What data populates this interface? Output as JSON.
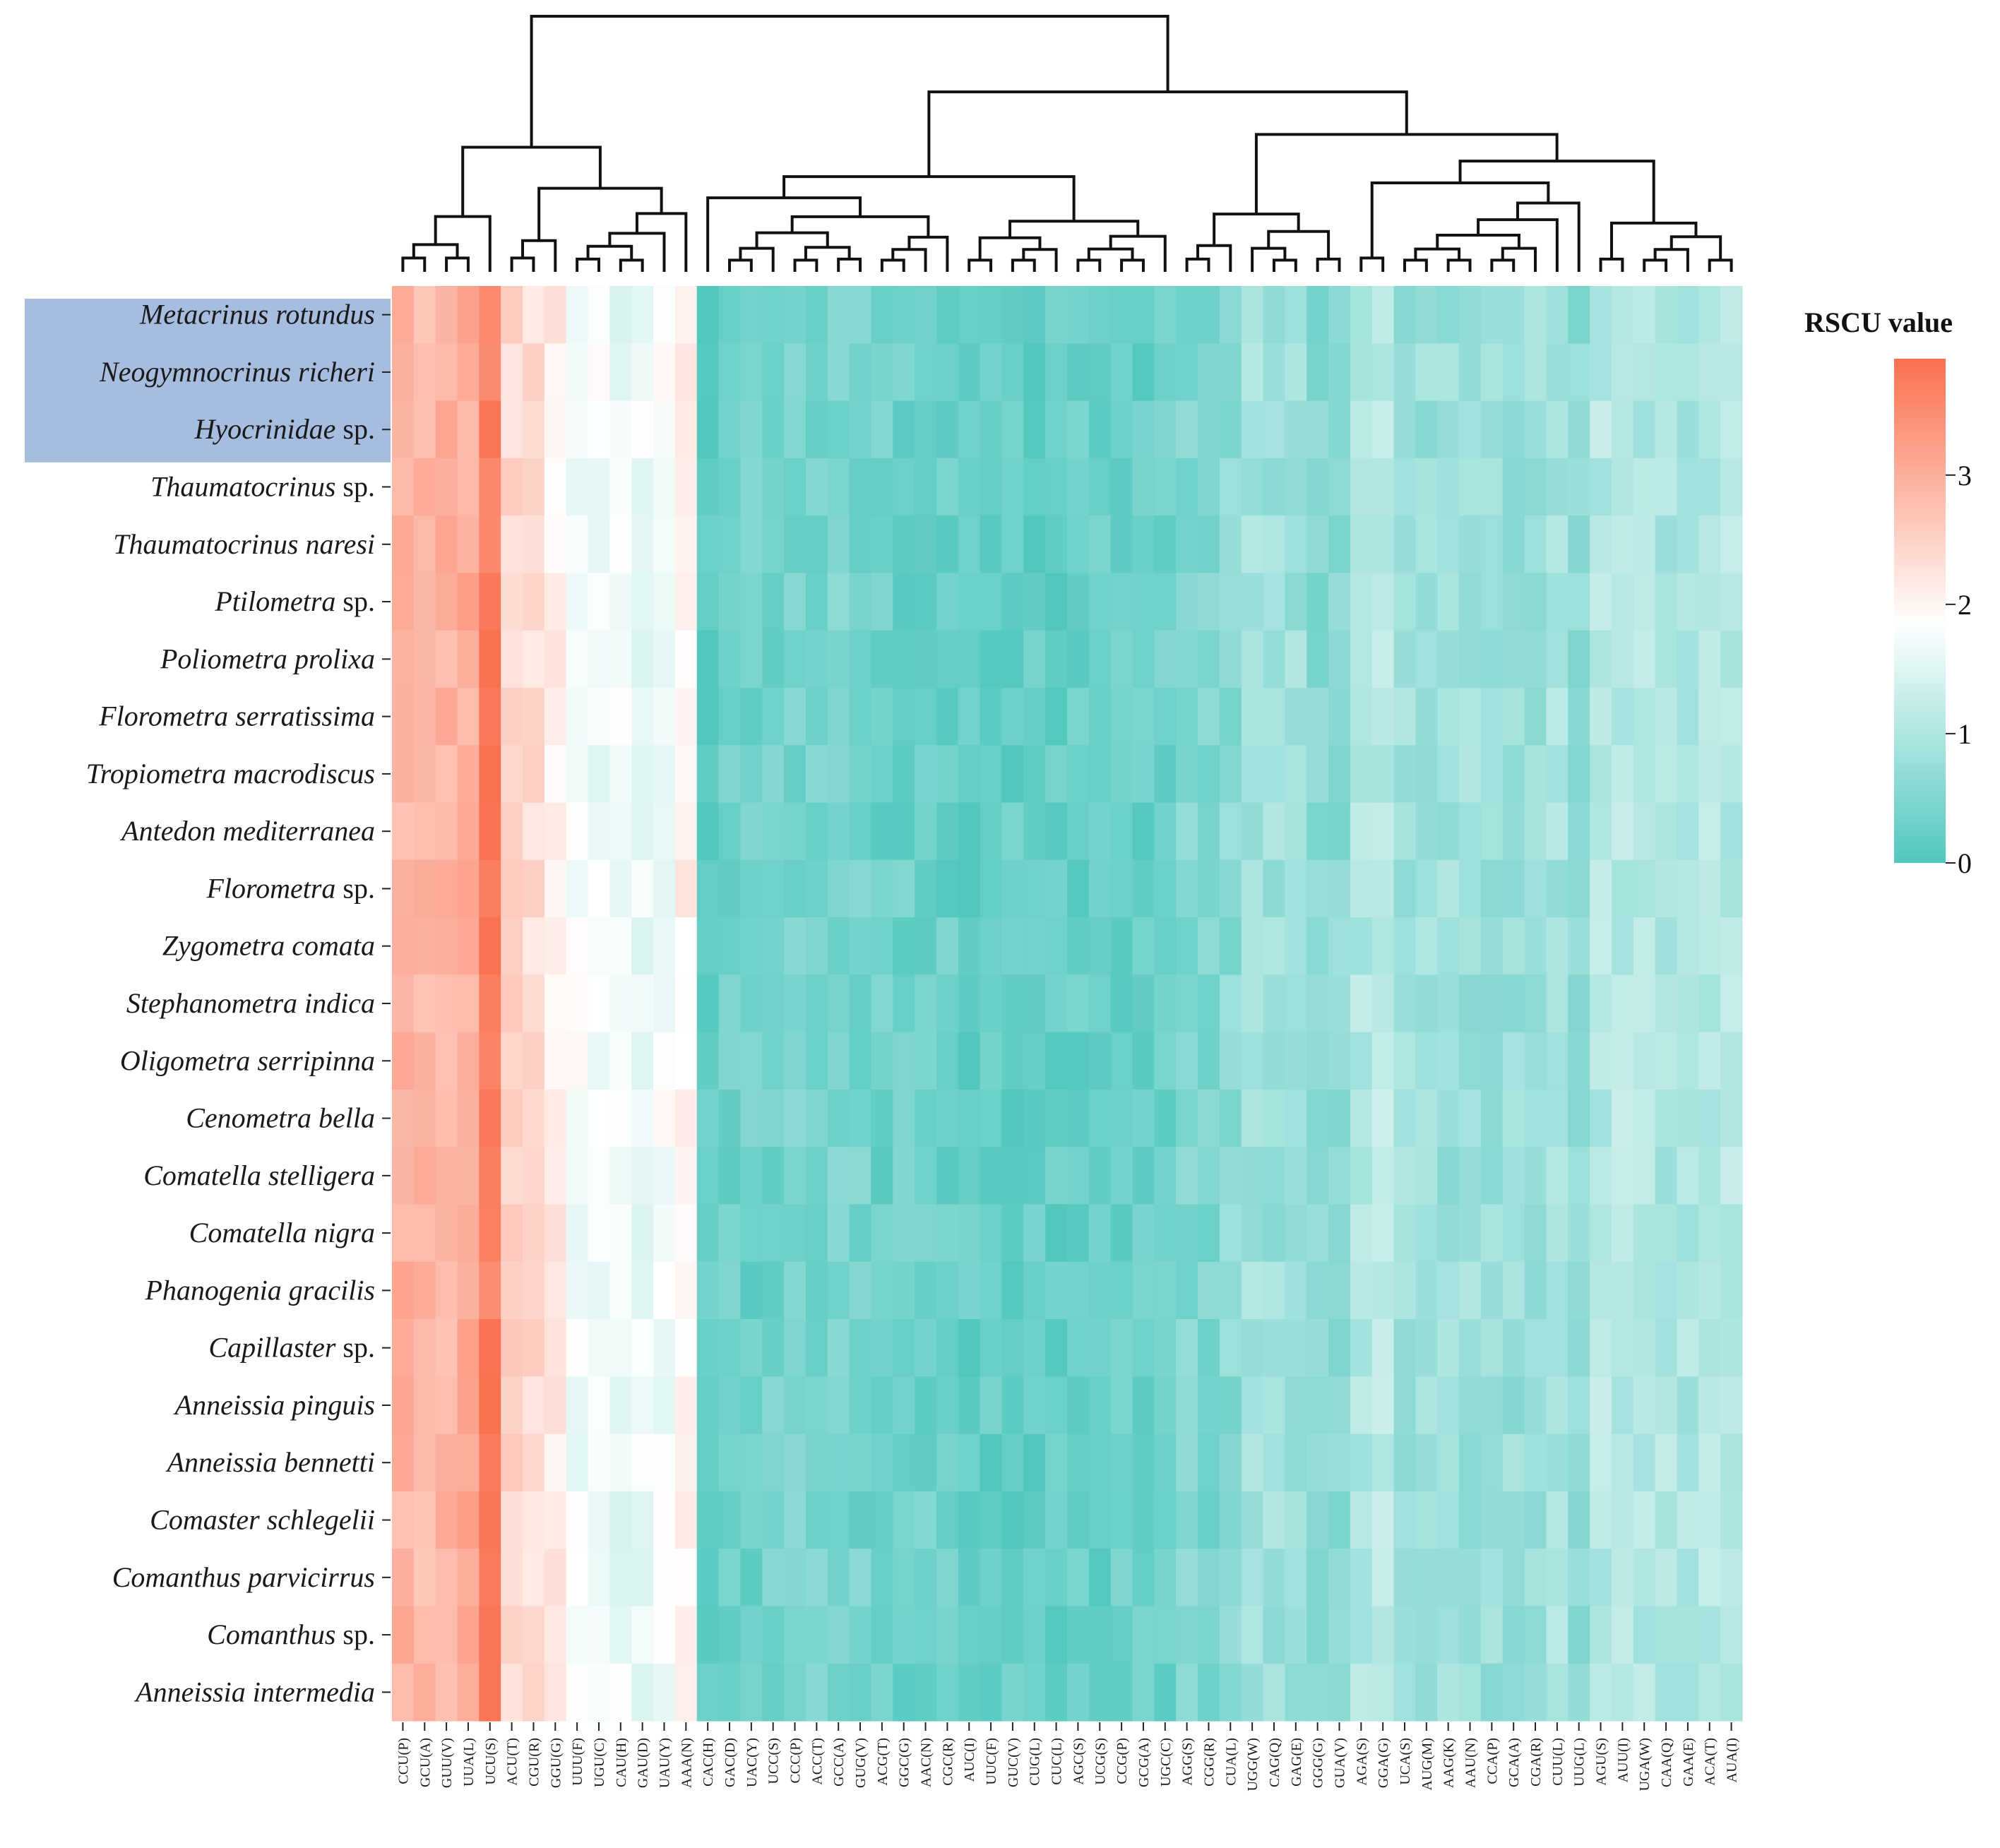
{
  "chart_data": {
    "type": "heatmap",
    "title": "",
    "legend": {
      "title": "RSCU value",
      "ticks": [
        "0",
        "1",
        "2",
        "3"
      ],
      "range": [
        0,
        3.9
      ],
      "colors": {
        "low": "#52c8bd",
        "mid": "#ffffff",
        "high": "#fa7150"
      },
      "mid_value": 1.85,
      "placement": "right"
    },
    "highlight": {
      "rows": [
        0,
        1,
        2
      ],
      "color": "#a6bde0"
    },
    "rows": [
      {
        "genus": "Metacrinus",
        "rest": " rotundus",
        "rest_italic": true
      },
      {
        "genus": "Neogymnocrinus",
        "rest": " richeri",
        "rest_italic": true
      },
      {
        "genus": "Hyocrinidae",
        "rest": " sp.",
        "rest_italic": false
      },
      {
        "genus": "Thaumatocrinus",
        "rest": " sp.",
        "rest_italic": false
      },
      {
        "genus": "Thaumatocrinus",
        "rest": " naresi",
        "rest_italic": true
      },
      {
        "genus": "Ptilometra",
        "rest": " sp.",
        "rest_italic": false
      },
      {
        "genus": "Poliometra",
        "rest": " prolixa",
        "rest_italic": true
      },
      {
        "genus": "Florometra",
        "rest": " serratissima",
        "rest_italic": true
      },
      {
        "genus": "Tropiometra",
        "rest": " macrodiscus",
        "rest_italic": true
      },
      {
        "genus": "Antedon",
        "rest": " mediterranea",
        "rest_italic": true
      },
      {
        "genus": "Florometra",
        "rest": " sp.",
        "rest_italic": false
      },
      {
        "genus": "Zygometra",
        "rest": " comata",
        "rest_italic": true
      },
      {
        "genus": "Stephanometra",
        "rest": " indica",
        "rest_italic": true
      },
      {
        "genus": "Oligometra",
        "rest": " serripinna",
        "rest_italic": true
      },
      {
        "genus": "Cenometra",
        "rest": " bella",
        "rest_italic": true
      },
      {
        "genus": "Comatella",
        "rest": " stelligera",
        "rest_italic": true
      },
      {
        "genus": "Comatella",
        "rest": " nigra",
        "rest_italic": true
      },
      {
        "genus": "Phanogenia",
        "rest": " gracilis",
        "rest_italic": true
      },
      {
        "genus": "Capillaster",
        "rest": " sp.",
        "rest_italic": false
      },
      {
        "genus": "Anneissia",
        "rest": " pinguis",
        "rest_italic": true
      },
      {
        "genus": "Anneissia",
        "rest": " bennetti",
        "rest_italic": true
      },
      {
        "genus": "Comaster",
        "rest": " schlegelii",
        "rest_italic": true
      },
      {
        "genus": "Comanthus",
        "rest": " parvicirrus",
        "rest_italic": true
      },
      {
        "genus": "Comanthus",
        "rest": " sp.",
        "rest_italic": false
      },
      {
        "genus": "Anneissia",
        "rest": " intermedia",
        "rest_italic": true
      }
    ],
    "columns": [
      "CCU(P)",
      "GCU(A)",
      "GUU(V)",
      "UUA(L)",
      "UCU(S)",
      "ACU(T)",
      "CGU(R)",
      "GGU(G)",
      "UUU(F)",
      "UGU(C)",
      "CAU(H)",
      "GAU(D)",
      "UAU(Y)",
      "AAA(N)",
      "CAC(H)",
      "GAC(D)",
      "UAC(Y)",
      "UCC(S)",
      "CCC(P)",
      "ACC(T)",
      "GCC(A)",
      "GUG(V)",
      "ACG(T)",
      "GGC(G)",
      "AAC(N)",
      "CGC(R)",
      "AUC(I)",
      "UUC(F)",
      "GUC(V)",
      "CUG(L)",
      "CUC(L)",
      "AGC(S)",
      "UCG(S)",
      "CCG(P)",
      "GCG(A)",
      "UGC(C)",
      "AGG(S)",
      "CGG(R)",
      "CUA(L)",
      "UGG(W)",
      "CAG(Q)",
      "GAG(E)",
      "GGG(G)",
      "GUA(V)",
      "AGA(S)",
      "GGA(G)",
      "UCA(S)",
      "AUG(M)",
      "AAG(K)",
      "AAU(N)",
      "CCA(P)",
      "GCA(A)",
      "CGA(R)",
      "CUU(L)",
      "UUG(L)",
      "AGU(S)",
      "AUU(I)",
      "UGA(W)",
      "CAA(Q)",
      "GAA(E)",
      "ACA(T)",
      "AUA(I)"
    ],
    "column_base_values": [
      2.95,
      2.85,
      2.95,
      3.05,
      3.7,
      2.45,
      2.35,
      2.1,
      1.75,
      1.7,
      1.65,
      1.65,
      1.75,
      2.05,
      0.15,
      0.3,
      0.3,
      0.35,
      0.4,
      0.4,
      0.45,
      0.4,
      0.3,
      0.3,
      0.3,
      0.25,
      0.2,
      0.2,
      0.2,
      0.2,
      0.2,
      0.25,
      0.25,
      0.25,
      0.25,
      0.3,
      0.5,
      0.45,
      0.6,
      0.85,
      0.8,
      0.8,
      0.55,
      0.6,
      1.0,
      1.1,
      0.8,
      0.8,
      0.8,
      0.8,
      0.75,
      0.75,
      0.8,
      0.9,
      0.65,
      1.05,
      1.1,
      1.0,
      1.0,
      1.0,
      1.05,
      1.05
    ],
    "cells_note": "Cell values estimated from the colour scale: each cell equals the column base value with small per-species variation.",
    "dendrogram": "Column clustering tree drawn above the heatmap (no labels)."
  }
}
